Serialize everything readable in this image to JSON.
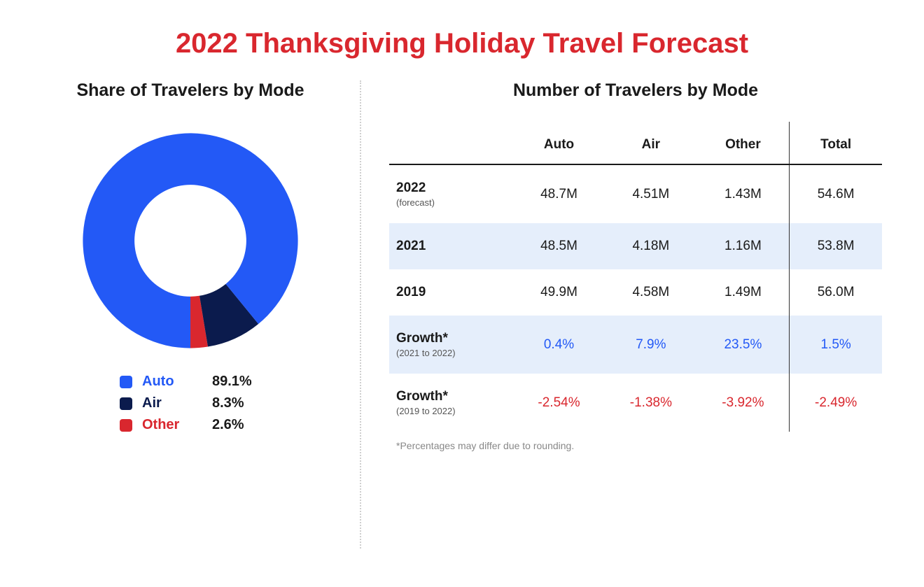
{
  "title": {
    "text": "2022 Thanksgiving Holiday Travel Forecast",
    "color": "#d9272e",
    "fontsize": 40
  },
  "donut": {
    "section_title": "Share of Travelers by Mode",
    "type": "donut",
    "inner_radius_ratio": 0.52,
    "background_color": "#ffffff",
    "slices": [
      {
        "key": "auto",
        "label": "Auto",
        "value": 89.1,
        "color": "#2359f6"
      },
      {
        "key": "air",
        "label": "Air",
        "value": 8.3,
        "color": "#0b1b4d"
      },
      {
        "key": "other",
        "label": "Other",
        "value": 2.6,
        "color": "#d9272e"
      }
    ],
    "legend": [
      {
        "label": "Auto",
        "value": "89.1%",
        "color": "#2359f6"
      },
      {
        "label": "Air",
        "value": "8.3%",
        "color": "#0b1b4d"
      },
      {
        "label": "Other",
        "value": "2.6%",
        "color": "#d9272e"
      }
    ]
  },
  "table": {
    "section_title": "Number of Travelers by Mode",
    "columns": [
      "",
      "Auto",
      "Air",
      "Other",
      "Total"
    ],
    "rows": [
      {
        "label": "2022",
        "sublabel": "(forecast)",
        "shaded": false,
        "cells": [
          "48.7M",
          "4.51M",
          "1.43M",
          "54.6M"
        ],
        "text_color": "#1a1a1a"
      },
      {
        "label": "2021",
        "sublabel": "",
        "shaded": true,
        "cells": [
          "48.5M",
          "4.18M",
          "1.16M",
          "53.8M"
        ],
        "text_color": "#1a1a1a"
      },
      {
        "label": "2019",
        "sublabel": "",
        "shaded": false,
        "cells": [
          "49.9M",
          "4.58M",
          "1.49M",
          "56.0M"
        ],
        "text_color": "#1a1a1a"
      },
      {
        "label": "Growth*",
        "sublabel": "(2021 to 2022)",
        "shaded": true,
        "cells": [
          "0.4%",
          "7.9%",
          "23.5%",
          "1.5%"
        ],
        "text_color": "#2359f6"
      },
      {
        "label": "Growth*",
        "sublabel": "(2019 to 2022)",
        "shaded": false,
        "cells": [
          "-2.54%",
          "-1.38%",
          "-3.92%",
          "-2.49%"
        ],
        "text_color": "#d9272e"
      }
    ],
    "footnote": "*Percentages may differ due to rounding.",
    "shaded_bg": "#e5eefb",
    "header_border": "#1a1a1a",
    "total_divider": "#333333"
  }
}
